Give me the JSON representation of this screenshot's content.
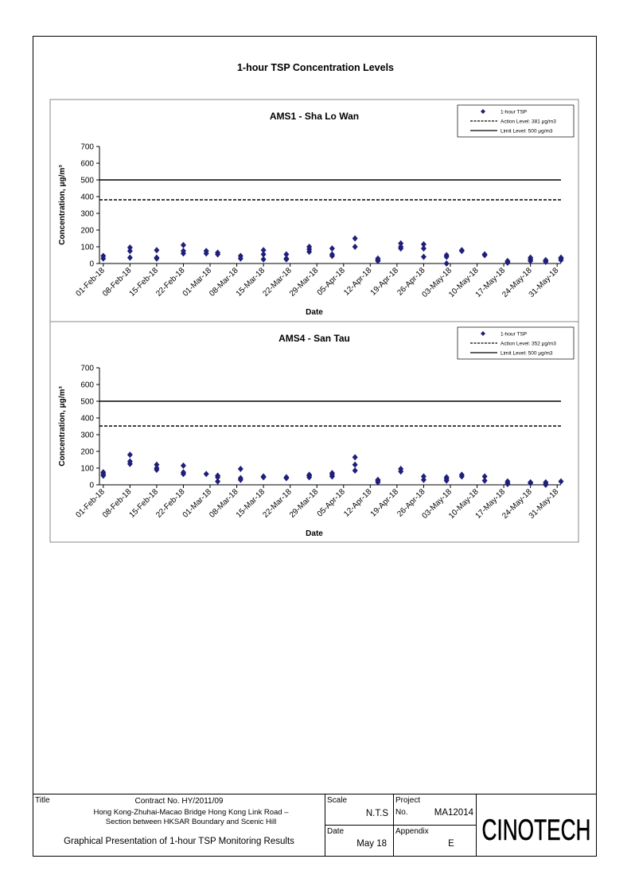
{
  "page": {
    "title": "1-hour TSP Concentration Levels"
  },
  "chart_data": [
    {
      "type": "scatter",
      "title": "AMS1 - Sha Lo Wan",
      "xlabel": "Date",
      "ylabel": "Concentration, μg/m³",
      "ylim": [
        0,
        700
      ],
      "yticks": [
        0,
        100,
        200,
        300,
        400,
        500,
        600,
        700
      ],
      "xlim": [
        "2018-01-31",
        "2018-06-01"
      ],
      "xticks": [
        "01-Feb-18",
        "08-Feb-18",
        "15-Feb-18",
        "22-Feb-18",
        "01-Mar-18",
        "08-Mar-18",
        "15-Mar-18",
        "22-Mar-18",
        "29-Mar-18",
        "05-Apr-18",
        "12-Apr-18",
        "19-Apr-18",
        "26-Apr-18",
        "03-May-18",
        "10-May-18",
        "17-May-18",
        "24-May-18",
        "31-May-18"
      ],
      "xtick_dates": [
        "2018-02-01",
        "2018-02-08",
        "2018-02-15",
        "2018-02-22",
        "2018-03-01",
        "2018-03-08",
        "2018-03-15",
        "2018-03-22",
        "2018-03-29",
        "2018-04-05",
        "2018-04-12",
        "2018-04-19",
        "2018-04-26",
        "2018-05-03",
        "2018-05-10",
        "2018-05-17",
        "2018-05-24",
        "2018-05-31"
      ],
      "grid": false,
      "legend": "top-right",
      "series": [
        {
          "name": "1-hour TSP",
          "marker": "diamond",
          "color": "#1F1F7A",
          "points": [
            {
              "x": "2018-02-01",
              "y": [
                30,
                45
              ]
            },
            {
              "x": "2018-02-08",
              "y": [
                35,
                75,
                95
              ]
            },
            {
              "x": "2018-02-15",
              "y": [
                30,
                35,
                80
              ]
            },
            {
              "x": "2018-02-22",
              "y": [
                60,
                75,
                110
              ]
            },
            {
              "x": "2018-02-28",
              "y": [
                60,
                75
              ]
            },
            {
              "x": "2018-03-03",
              "y": [
                55,
                65
              ]
            },
            {
              "x": "2018-03-09",
              "y": [
                30,
                45
              ]
            },
            {
              "x": "2018-03-15",
              "y": [
                25,
                55,
                80
              ]
            },
            {
              "x": "2018-03-21",
              "y": [
                25,
                30,
                55
              ]
            },
            {
              "x": "2018-03-27",
              "y": [
                70,
                85,
                100
              ]
            },
            {
              "x": "2018-04-02",
              "y": [
                45,
                55,
                90
              ]
            },
            {
              "x": "2018-04-08",
              "y": [
                100,
                150
              ]
            },
            {
              "x": "2018-04-14",
              "y": [
                15,
                20,
                30
              ]
            },
            {
              "x": "2018-04-20",
              "y": [
                90,
                100,
                120
              ]
            },
            {
              "x": "2018-04-26",
              "y": [
                40,
                90,
                115
              ]
            },
            {
              "x": "2018-05-02",
              "y": [
                0,
                40,
                50
              ]
            },
            {
              "x": "2018-05-06",
              "y": [
                75,
                80
              ]
            },
            {
              "x": "2018-05-12",
              "y": [
                50,
                55
              ]
            },
            {
              "x": "2018-05-18",
              "y": [
                5,
                10,
                15
              ]
            },
            {
              "x": "2018-05-24",
              "y": [
                15,
                25,
                35
              ]
            },
            {
              "x": "2018-05-28",
              "y": [
                10,
                15,
                20
              ]
            },
            {
              "x": "2018-06-01",
              "y": [
                20,
                30,
                35
              ]
            }
          ]
        },
        {
          "name": "Action Level: 381 μg/m3",
          "line": "dashed",
          "value": 381,
          "color": "#000000"
        },
        {
          "name": "Limit Level: 500 μg/m3",
          "line": "solid",
          "value": 500,
          "color": "#000000"
        }
      ]
    },
    {
      "type": "scatter",
      "title": "AMS4 - San Tau",
      "xlabel": "Date",
      "ylabel": "Concentration, μg/m³",
      "ylim": [
        0,
        700
      ],
      "yticks": [
        0,
        100,
        200,
        300,
        400,
        500,
        600,
        700
      ],
      "xlim": [
        "2018-01-31",
        "2018-06-01"
      ],
      "xticks": [
        "01-Feb-18",
        "08-Feb-18",
        "15-Feb-18",
        "22-Feb-18",
        "01-Mar-18",
        "08-Mar-18",
        "15-Mar-18",
        "22-Mar-18",
        "29-Mar-18",
        "05-Apr-18",
        "12-Apr-18",
        "19-Apr-18",
        "26-Apr-18",
        "03-May-18",
        "10-May-18",
        "17-May-18",
        "24-May-18",
        "31-May-18"
      ],
      "xtick_dates": [
        "2018-02-01",
        "2018-02-08",
        "2018-02-15",
        "2018-02-22",
        "2018-03-01",
        "2018-03-08",
        "2018-03-15",
        "2018-03-22",
        "2018-03-29",
        "2018-04-05",
        "2018-04-12",
        "2018-04-19",
        "2018-04-26",
        "2018-05-03",
        "2018-05-10",
        "2018-05-17",
        "2018-05-24",
        "2018-05-31"
      ],
      "grid": false,
      "legend": "top-right",
      "series": [
        {
          "name": "1-hour TSP",
          "marker": "diamond",
          "color": "#1F1F7A",
          "points": [
            {
              "x": "2018-02-01",
              "y": [
                55,
                65,
                75
              ]
            },
            {
              "x": "2018-02-08",
              "y": [
                125,
                140,
                180
              ]
            },
            {
              "x": "2018-02-15",
              "y": [
                90,
                100,
                120
              ]
            },
            {
              "x": "2018-02-22",
              "y": [
                65,
                75,
                115
              ]
            },
            {
              "x": "2018-02-28",
              "y": [
                65
              ]
            },
            {
              "x": "2018-03-03",
              "y": [
                20,
                45,
                55
              ]
            },
            {
              "x": "2018-03-09",
              "y": [
                30,
                40,
                95
              ]
            },
            {
              "x": "2018-03-15",
              "y": [
                45,
                50
              ]
            },
            {
              "x": "2018-03-21",
              "y": [
                40,
                45
              ]
            },
            {
              "x": "2018-03-27",
              "y": [
                45,
                55,
                60
              ]
            },
            {
              "x": "2018-04-02",
              "y": [
                50,
                60,
                70
              ]
            },
            {
              "x": "2018-04-08",
              "y": [
                85,
                120,
                165
              ]
            },
            {
              "x": "2018-04-14",
              "y": [
                15,
                25,
                30
              ]
            },
            {
              "x": "2018-04-20",
              "y": [
                80,
                95
              ]
            },
            {
              "x": "2018-04-26",
              "y": [
                30,
                50
              ]
            },
            {
              "x": "2018-05-02",
              "y": [
                25,
                35,
                45
              ]
            },
            {
              "x": "2018-05-06",
              "y": [
                50,
                60
              ]
            },
            {
              "x": "2018-05-12",
              "y": [
                25,
                50
              ]
            },
            {
              "x": "2018-05-18",
              "y": [
                5,
                10,
                20
              ]
            },
            {
              "x": "2018-05-24",
              "y": [
                10,
                15
              ]
            },
            {
              "x": "2018-05-28",
              "y": [
                0,
                5,
                15
              ]
            },
            {
              "x": "2018-06-01",
              "y": [
                20
              ]
            }
          ]
        },
        {
          "name": "Action Level: 352 μg/m3",
          "line": "dashed",
          "value": 352,
          "color": "#000000"
        },
        {
          "name": "Limit Level: 500 μg/m3",
          "line": "solid",
          "value": 500,
          "color": "#000000"
        }
      ]
    }
  ],
  "titleblock": {
    "title_label": "Title",
    "contract": "Contract No. HY/2011/09",
    "project_line1": "Hong Kong-Zhuhai-Macao Bridge Hong Kong Link Road –",
    "project_line2": "Section between HKSAR Boundary and Scenic Hill",
    "drawing_title": "Graphical Presentation of 1-hour TSP Monitoring Results",
    "scale_label": "Scale",
    "scale_value": "N.T.S",
    "project_label": "Project",
    "no_label": "No.",
    "project_no": "MA12014",
    "date_label": "Date",
    "date_value": "May 18",
    "appendix_label": "Appendix",
    "appendix_value": "E",
    "logo": "CINOTECH"
  }
}
